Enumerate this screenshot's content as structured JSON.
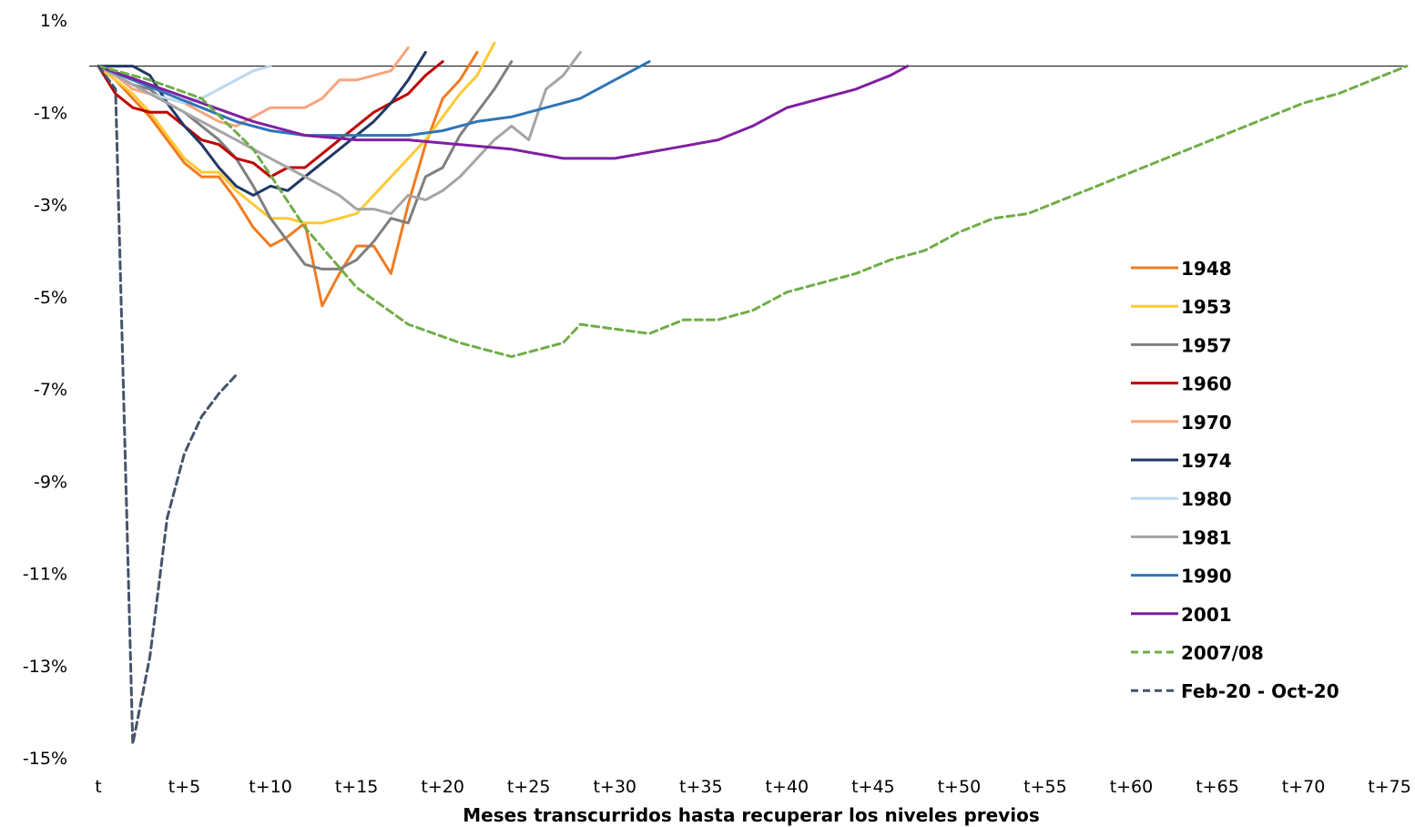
{
  "chart_data": {
    "type": "line",
    "title": "",
    "xlabel": "Meses transcurridos hasta recuperar los niveles previos",
    "ylabel": "",
    "ylim": [
      -15,
      1
    ],
    "xlim": [
      0,
      76
    ],
    "yticks": [
      1,
      -1,
      -3,
      -5,
      -7,
      -9,
      -11,
      -13,
      -15
    ],
    "ytick_labels": [
      "1%",
      "-1%",
      "-3%",
      "-5%",
      "-7%",
      "-9%",
      "-11%",
      "-13%",
      "-15%"
    ],
    "xticks": [
      0,
      5,
      10,
      15,
      20,
      25,
      30,
      35,
      40,
      45,
      50,
      55,
      60,
      65,
      70,
      75
    ],
    "xtick_labels": [
      "t",
      "t+5",
      "t+10",
      "t+15",
      "t+20",
      "t+25",
      "t+30",
      "t+35",
      "t+40",
      "t+45",
      "t+50",
      "t+55",
      "t+60",
      "t+65",
      "t+70",
      "t+75"
    ],
    "grid": false,
    "zero_line": true,
    "legend_position": "right",
    "series": [
      {
        "name": "1948",
        "color": "#F07C22",
        "dash": "solid",
        "x": [
          0,
          1,
          2,
          3,
          4,
          5,
          6,
          7,
          8,
          9,
          10,
          11,
          12,
          13,
          14,
          15,
          16,
          17,
          18,
          19,
          20,
          21,
          22
        ],
        "y": [
          0,
          -0.3,
          -0.7,
          -1.1,
          -1.6,
          -2.1,
          -2.4,
          -2.4,
          -2.9,
          -3.5,
          -3.9,
          -3.7,
          -3.4,
          -5.2,
          -4.5,
          -3.9,
          -3.9,
          -4.5,
          -3.0,
          -1.7,
          -0.7,
          -0.3,
          0.3
        ]
      },
      {
        "name": "1953",
        "color": "#FFC935",
        "dash": "solid",
        "x": [
          0,
          1,
          2,
          3,
          4,
          5,
          6,
          7,
          8,
          9,
          10,
          11,
          12,
          13,
          14,
          15,
          16,
          17,
          18,
          19,
          20,
          21,
          22,
          23
        ],
        "y": [
          0,
          -0.3,
          -0.6,
          -1.0,
          -1.5,
          -2.0,
          -2.3,
          -2.3,
          -2.7,
          -3.0,
          -3.3,
          -3.3,
          -3.4,
          -3.4,
          -3.3,
          -3.2,
          -2.8,
          -2.4,
          -2.0,
          -1.6,
          -1.1,
          -0.6,
          -0.2,
          0.5
        ]
      },
      {
        "name": "1957",
        "color": "#7F7F7F",
        "dash": "solid",
        "x": [
          0,
          1,
          2,
          3,
          4,
          5,
          6,
          7,
          8,
          9,
          10,
          11,
          12,
          13,
          14,
          15,
          16,
          17,
          18,
          19,
          20,
          21,
          22,
          23,
          24
        ],
        "y": [
          0,
          -0.2,
          -0.4,
          -0.5,
          -0.8,
          -1.0,
          -1.3,
          -1.6,
          -2.0,
          -2.6,
          -3.3,
          -3.8,
          -4.3,
          -4.4,
          -4.4,
          -4.2,
          -3.8,
          -3.3,
          -3.4,
          -2.4,
          -2.2,
          -1.5,
          -1.0,
          -0.5,
          0.1
        ]
      },
      {
        "name": "1960",
        "color": "#C00000",
        "dash": "solid",
        "x": [
          0,
          1,
          2,
          3,
          4,
          5,
          6,
          7,
          8,
          9,
          10,
          11,
          12,
          13,
          14,
          15,
          16,
          17,
          18,
          19,
          20
        ],
        "y": [
          0,
          -0.6,
          -0.9,
          -1.0,
          -1.0,
          -1.3,
          -1.6,
          -1.7,
          -2.0,
          -2.1,
          -2.4,
          -2.2,
          -2.2,
          -1.9,
          -1.6,
          -1.3,
          -1.0,
          -0.8,
          -0.6,
          -0.2,
          0.1
        ]
      },
      {
        "name": "1970",
        "color": "#F8A57E",
        "dash": "solid",
        "x": [
          0,
          1,
          2,
          3,
          4,
          5,
          6,
          7,
          8,
          9,
          10,
          11,
          12,
          13,
          14,
          15,
          16,
          17,
          18
        ],
        "y": [
          0,
          -0.2,
          -0.5,
          -0.6,
          -0.7,
          -0.8,
          -1.0,
          -1.2,
          -1.3,
          -1.1,
          -0.9,
          -0.9,
          -0.9,
          -0.7,
          -0.3,
          -0.3,
          -0.2,
          -0.1,
          0.4
        ]
      },
      {
        "name": "1974",
        "color": "#203864",
        "dash": "solid",
        "x": [
          0,
          1,
          2,
          3,
          4,
          5,
          6,
          7,
          8,
          9,
          10,
          11,
          12,
          13,
          14,
          15,
          16,
          17,
          18,
          19
        ],
        "y": [
          0,
          0,
          0,
          -0.2,
          -0.8,
          -1.3,
          -1.7,
          -2.2,
          -2.6,
          -2.8,
          -2.6,
          -2.7,
          -2.4,
          -2.1,
          -1.8,
          -1.5,
          -1.2,
          -0.8,
          -0.3,
          0.3
        ]
      },
      {
        "name": "1980",
        "color": "#BDD7EE",
        "dash": "solid",
        "x": [
          0,
          1,
          2,
          3,
          4,
          5,
          6,
          7,
          8,
          9,
          10
        ],
        "y": [
          0,
          -0.2,
          -0.4,
          -0.6,
          -0.7,
          -0.8,
          -0.7,
          -0.5,
          -0.3,
          -0.1,
          0.0
        ]
      },
      {
        "name": "1981",
        "color": "#A5A5A5",
        "dash": "solid",
        "x": [
          0,
          1,
          2,
          3,
          4,
          5,
          6,
          7,
          8,
          9,
          10,
          11,
          12,
          13,
          14,
          15,
          16,
          17,
          18,
          19,
          20,
          21,
          22,
          23,
          24,
          25,
          26,
          27,
          28
        ],
        "y": [
          0,
          -0.2,
          -0.4,
          -0.6,
          -0.8,
          -1.0,
          -1.2,
          -1.4,
          -1.6,
          -1.8,
          -2.0,
          -2.2,
          -2.4,
          -2.6,
          -2.8,
          -3.1,
          -3.1,
          -3.2,
          -2.8,
          -2.9,
          -2.7,
          -2.4,
          -2.0,
          -1.6,
          -1.3,
          -1.6,
          -0.5,
          -0.2,
          0.3
        ]
      },
      {
        "name": "1990",
        "color": "#2E75B6",
        "dash": "solid",
        "x": [
          0,
          2,
          4,
          6,
          8,
          10,
          12,
          14,
          16,
          18,
          20,
          22,
          24,
          26,
          28,
          30,
          32
        ],
        "y": [
          0,
          -0.3,
          -0.6,
          -0.9,
          -1.2,
          -1.4,
          -1.5,
          -1.5,
          -1.5,
          -1.5,
          -1.4,
          -1.2,
          -1.1,
          -0.9,
          -0.7,
          -0.3,
          0.1
        ]
      },
      {
        "name": "2001",
        "color": "#7F1FA2",
        "dash": "solid",
        "x": [
          0,
          3,
          6,
          9,
          12,
          15,
          18,
          21,
          24,
          27,
          30,
          33,
          36,
          38,
          40,
          42,
          44,
          46,
          47
        ],
        "y": [
          0,
          -0.4,
          -0.8,
          -1.2,
          -1.5,
          -1.6,
          -1.6,
          -1.7,
          -1.8,
          -2.0,
          -2.0,
          -1.8,
          -1.6,
          -1.3,
          -0.9,
          -0.7,
          -0.5,
          -0.2,
          0.0
        ]
      },
      {
        "name": "2007/08",
        "color": "#70AD47",
        "dash": "dashed",
        "x": [
          0,
          3,
          6,
          9,
          12,
          15,
          18,
          21,
          24,
          27,
          28,
          30,
          32,
          34,
          36,
          38,
          40,
          42,
          44,
          46,
          48,
          50,
          52,
          54,
          56,
          58,
          60,
          62,
          64,
          66,
          68,
          70,
          72,
          74,
          76
        ],
        "y": [
          0,
          -0.3,
          -0.7,
          -1.8,
          -3.5,
          -4.8,
          -5.6,
          -6.0,
          -6.3,
          -6.0,
          -5.6,
          -5.7,
          -5.8,
          -5.5,
          -5.5,
          -5.3,
          -4.9,
          -4.7,
          -4.5,
          -4.2,
          -4.0,
          -3.6,
          -3.3,
          -3.2,
          -2.9,
          -2.6,
          -2.3,
          -2.0,
          -1.7,
          -1.4,
          -1.1,
          -0.8,
          -0.6,
          -0.3,
          0.0
        ]
      },
      {
        "name": "Feb-20 - Oct-20",
        "color": "#44546A",
        "dash": "dashed",
        "x": [
          0,
          1,
          2,
          3,
          4,
          5,
          6,
          7,
          8
        ],
        "y": [
          0,
          -0.5,
          -14.7,
          -12.8,
          -9.8,
          -8.4,
          -7.6,
          -7.1,
          -6.7
        ]
      }
    ]
  }
}
